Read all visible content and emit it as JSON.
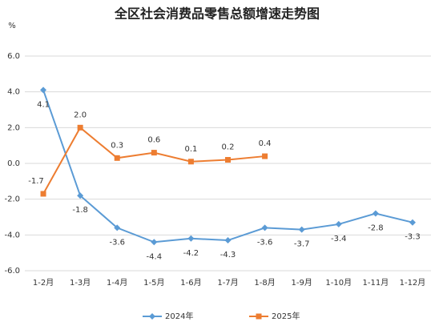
{
  "chart_data": {
    "type": "line",
    "title": "全区社会消费品零售总额增速走势图",
    "y_label": "%",
    "categories": [
      "1-2月",
      "1-3月",
      "1-4月",
      "1-5月",
      "1-6月",
      "1-7月",
      "1-8月",
      "1-9月",
      "1-10月",
      "1-11月",
      "1-12月"
    ],
    "series": [
      {
        "name": "2024年",
        "color": "#5b9bd5",
        "marker": "diamond",
        "values": [
          4.1,
          -1.8,
          -3.6,
          -4.4,
          -4.2,
          -4.3,
          -3.6,
          -3.7,
          -3.4,
          -2.8,
          -3.3
        ],
        "value_labels": [
          "4.1",
          "-1.8",
          "-3.6",
          "-4.4",
          "-4.2",
          "-4.3",
          "-3.6",
          "-3.7",
          "-3.4",
          "-2.8",
          "-3.3"
        ]
      },
      {
        "name": "2025年",
        "color": "#ed7d31",
        "marker": "square",
        "values": [
          -1.7,
          2.0,
          0.3,
          0.6,
          0.1,
          0.2,
          0.4,
          null,
          null,
          null,
          null
        ],
        "value_labels": [
          "-1.7",
          "2.0",
          "0.3",
          "0.6",
          "0.1",
          "0.2",
          "0.4",
          null,
          null,
          null,
          null
        ]
      }
    ],
    "ylim": [
      -6,
      6
    ],
    "yticks": [
      {
        "value": -6,
        "label": "-6.0"
      },
      {
        "value": -4,
        "label": "-4.0"
      },
      {
        "value": -2,
        "label": "-2.0"
      },
      {
        "value": 0,
        "label": "0.0"
      },
      {
        "value": 2,
        "label": "2.0"
      },
      {
        "value": 4,
        "label": "4.0"
      },
      {
        "value": 6,
        "label": "6.0"
      }
    ],
    "grid": true,
    "legend": "bottom"
  }
}
